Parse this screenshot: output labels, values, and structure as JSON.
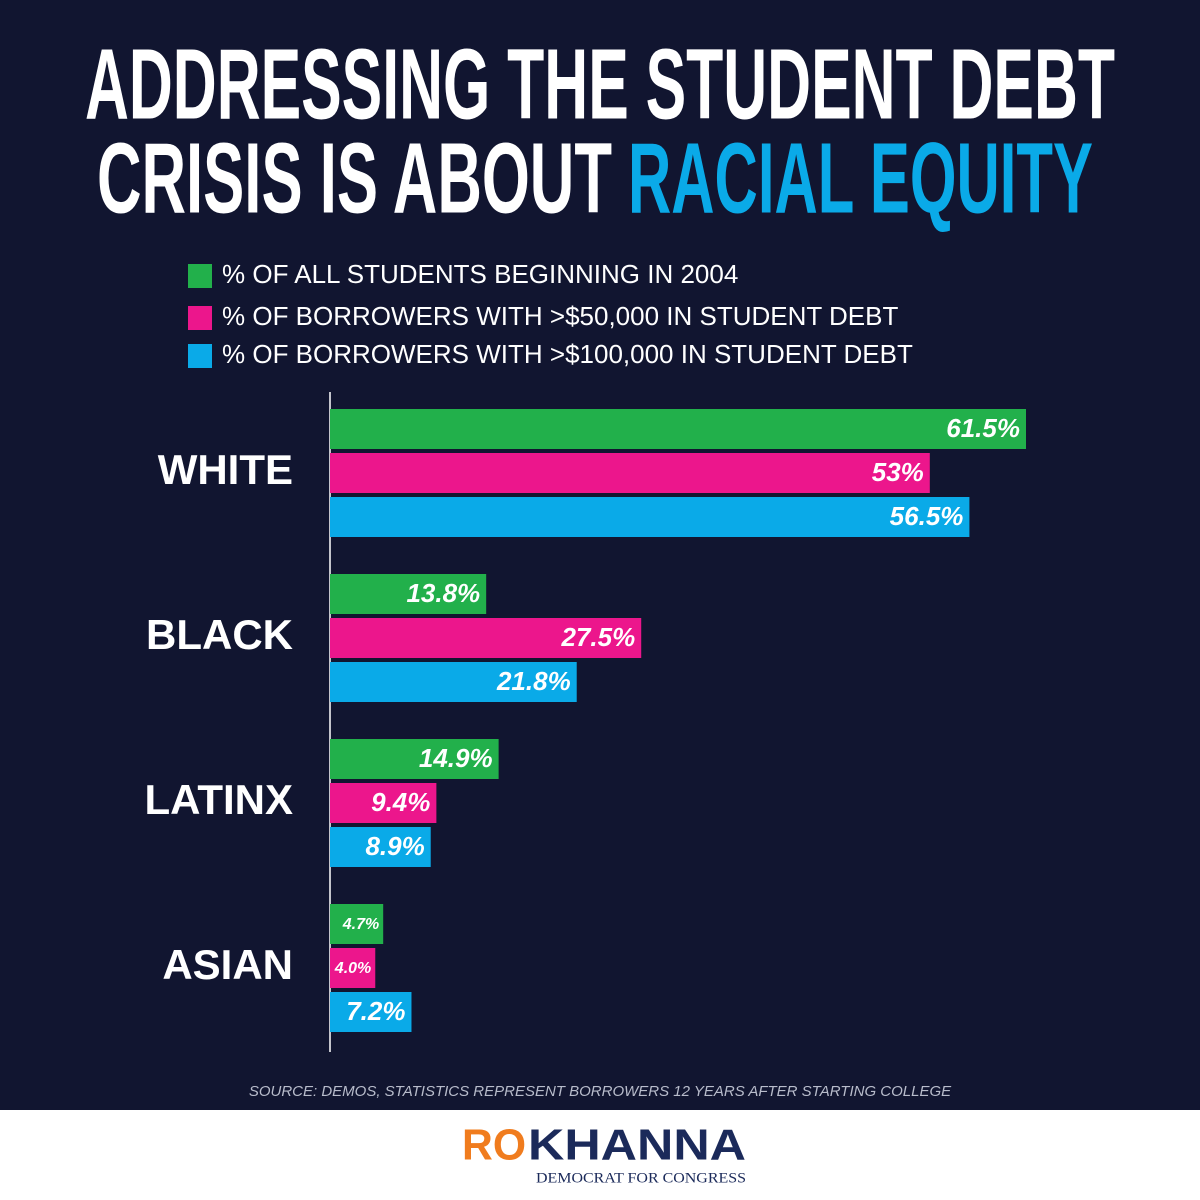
{
  "chart_data": {
    "type": "bar",
    "orientation": "horizontal",
    "title": [
      "ADDRESSING THE STUDENT DEBT",
      "CRISIS IS ABOUT"
    ],
    "title_highlight": "RACIAL EQUITY",
    "categories": [
      "WHITE",
      "BLACK",
      "LATINX",
      "ASIAN"
    ],
    "series": [
      {
        "name": "% OF ALL STUDENTS BEGINNING IN 2004",
        "color": "#22b04b",
        "values": [
          61.5,
          13.8,
          14.9,
          4.7
        ],
        "value_labels": [
          "61.5%",
          "13.8%",
          "14.9%",
          "4.7%"
        ]
      },
      {
        "name": "% OF BORROWERS WITH >$50,000 IN STUDENT DEBT",
        "color": "#ec168c",
        "values": [
          53,
          27.5,
          9.4,
          4.0
        ],
        "value_labels": [
          "53%",
          "27.5%",
          "9.4%",
          "4.0%"
        ]
      },
      {
        "name": "% OF BORROWERS WITH >$100,000 IN STUDENT DEBT",
        "color": "#0aaae8",
        "values": [
          56.5,
          21.8,
          8.9,
          7.2
        ],
        "value_labels": [
          "56.5%",
          "21.8%",
          "8.9%",
          "7.2%"
        ]
      }
    ],
    "xlim": [
      0,
      61.5
    ],
    "source": "SOURCE: DEMOS, STATISTICS REPRESENT BORROWERS 12 YEARS AFTER STARTING COLLEGE"
  },
  "footer": {
    "logo_first": "RO",
    "logo_second": "KHANNA",
    "tagline": "DEMOCRAT FOR CONGRESS"
  }
}
